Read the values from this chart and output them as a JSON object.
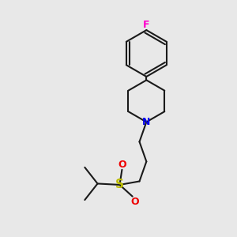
{
  "background_color": "#e8e8e8",
  "bond_color": "#1a1a1a",
  "F_color": "#ff00cc",
  "N_color": "#0000ee",
  "S_color": "#bbbb00",
  "O_color": "#ee0000",
  "figsize": [
    3.0,
    3.0
  ],
  "dpi": 100,
  "xlim": [
    0,
    10
  ],
  "ylim": [
    0,
    10
  ]
}
